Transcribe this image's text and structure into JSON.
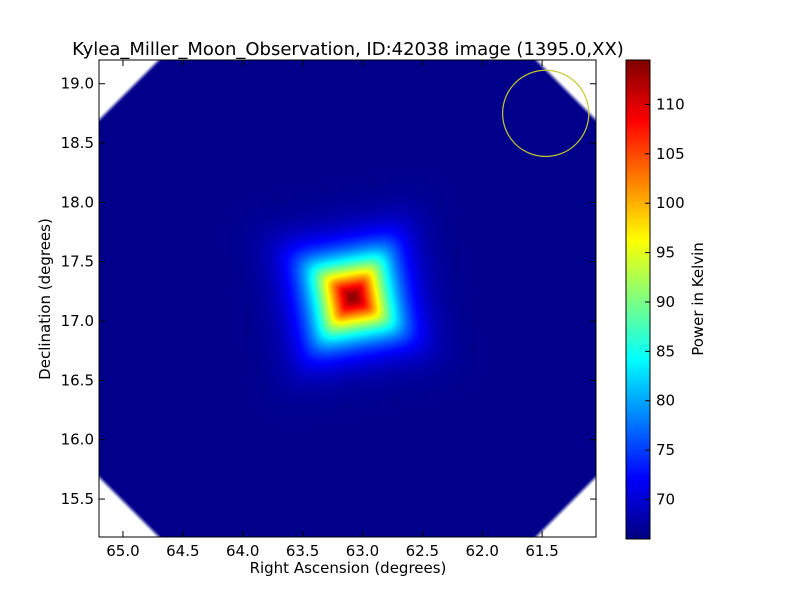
{
  "chart_data": {
    "type": "heatmap",
    "title": "Kylea_Miller_Moon_Observation, ID:42038 image (1395.0,XX)",
    "xlabel": "Right Ascension (degrees)",
    "ylabel": "Declination (degrees)",
    "colorbar_label": "Power in Kelvin",
    "colormap": "jet",
    "x_inverted": true,
    "xlim": [
      65.2,
      61.05
    ],
    "ylim": [
      15.18,
      19.2
    ],
    "xticks": [
      65.0,
      64.5,
      64.0,
      63.5,
      63.0,
      62.5,
      62.0,
      61.5
    ],
    "xtick_labels": [
      "65.0",
      "64.5",
      "64.0",
      "63.5",
      "63.0",
      "62.5",
      "62.0",
      "61.5"
    ],
    "yticks": [
      15.5,
      16.0,
      16.5,
      17.0,
      17.5,
      18.0,
      18.5,
      19.0
    ],
    "ytick_labels": [
      "15.5",
      "16.0",
      "16.5",
      "17.0",
      "17.5",
      "18.0",
      "18.5",
      "19.0"
    ],
    "clim": [
      66,
      114.5
    ],
    "cticks": [
      70,
      75,
      80,
      85,
      90,
      95,
      100,
      105,
      110
    ],
    "ctick_labels": [
      "70",
      "75",
      "80",
      "85",
      "90",
      "95",
      "100",
      "105",
      "110"
    ],
    "background_value": 66.5,
    "peak": {
      "ra": 63.08,
      "dec": 17.2,
      "value": 114
    },
    "source_half_width_deg": 0.42,
    "source_rotation_deg": 10,
    "beam_circle": {
      "ra": 61.47,
      "dec": 18.75,
      "radius_deg": 0.36,
      "color": "#c8c832"
    },
    "corner_mask_color": "#ffffff"
  }
}
